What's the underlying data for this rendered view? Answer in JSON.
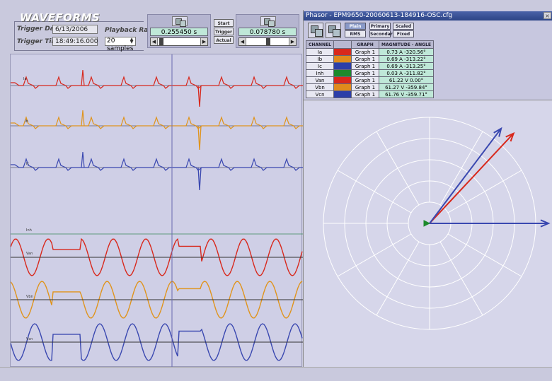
{
  "waveforms": {
    "title": "WAVEFORMS",
    "trigger_date_label": "Trigger Date",
    "trigger_date": "6/13/2006",
    "trigger_time_label": "Trigger Time",
    "trigger_time": "18:49:16.000",
    "playback_rate_label": "Playback Rate",
    "playback_rate": "20 samples"
  },
  "cursors": {
    "cursor1_value": "0.255450 s",
    "cursor2_value": "0.078780 s",
    "start_label": "Start",
    "trigger_label": "Trigger",
    "actual_label": "Actual"
  },
  "channels": {
    "ia": "Ia",
    "ib": "Ib",
    "ic": "Ic",
    "inh": "Inh",
    "van": "Van",
    "vbn": "Vbn",
    "vcn": "Vcn"
  },
  "phasor": {
    "title": "Phasor - EPM9650-20060613-184916-OSC.cfg",
    "close": "×",
    "buttons": {
      "plain": "Plain",
      "rms": "RMS",
      "primary": "Primary",
      "secondary": "Secondary",
      "scaled": "Scaled",
      "fixed": "Fixed"
    },
    "table_headers": [
      "CHANNEL",
      "",
      "GRAPH",
      "MAGNITUDE - ANGLE"
    ],
    "rows": [
      {
        "channel": "Ia",
        "color": "#d8281c",
        "graph": "Graph 1",
        "value": "0.73 A  -320.56°"
      },
      {
        "channel": "Ib",
        "color": "#e08a1c",
        "graph": "Graph 1",
        "value": "0.69 A  -313.22°"
      },
      {
        "channel": "Ic",
        "color": "#2c3ea8",
        "graph": "Graph 1",
        "value": "0.69 A  -313.25°"
      },
      {
        "channel": "Inh",
        "color": "#1c8a2c",
        "graph": "Graph 1",
        "value": "0.03 A  -311.82°"
      },
      {
        "channel": "Van",
        "color": "#d8281c",
        "graph": "Graph 1",
        "value": "61.22 V  0.00°"
      },
      {
        "channel": "Vbn",
        "color": "#e08a1c",
        "graph": "Graph 1",
        "value": "61.27 V  -359.84°"
      },
      {
        "channel": "Vcn",
        "color": "#2c3ea8",
        "graph": "Graph 1",
        "value": "61.76 V  -359.71°"
      }
    ]
  },
  "colors": {
    "red": "#d8281c",
    "orange": "#e0941c",
    "blue": "#3a48b0",
    "green": "#1c8a2c"
  }
}
